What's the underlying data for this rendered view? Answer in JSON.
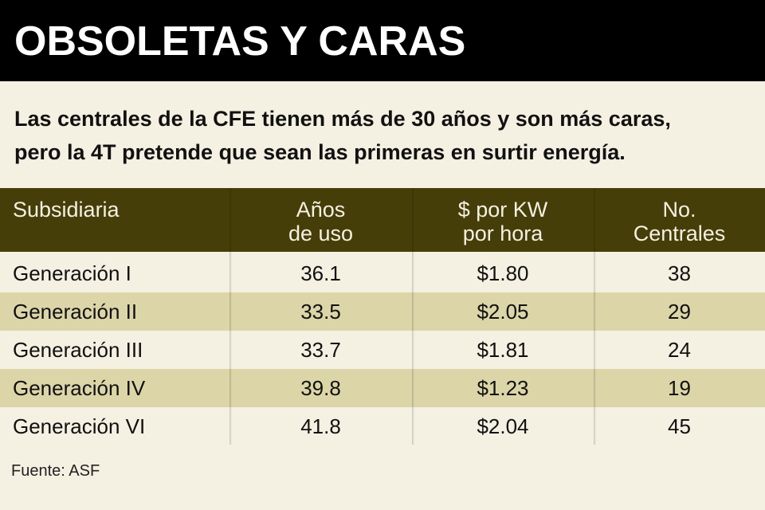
{
  "title": "OBSOLETAS Y CARAS",
  "subtitle": [
    "Las centrales de la CFE tienen más de 30 años y son más caras,",
    "pero la 4T pretende que sean las primeras en surtir energía."
  ],
  "colors": {
    "header_bg": "#463e08",
    "page_bg": "#f4f0e2",
    "alt_row": "#dcd5a8",
    "title_bg": "#000000"
  },
  "chart_data": {
    "type": "table",
    "columns": [
      [
        "Subsidiaria"
      ],
      [
        "Años",
        "de uso"
      ],
      [
        "$ por KW",
        "por hora"
      ],
      [
        "No.",
        "Centrales"
      ]
    ],
    "rows": [
      [
        "Generación I",
        "36.1",
        "$1.80",
        "38"
      ],
      [
        "Generación II",
        "33.5",
        "$2.05",
        "29"
      ],
      [
        "Generación III",
        "33.7",
        "$1.81",
        "24"
      ],
      [
        "Generación IV",
        "39.8",
        "$1.23",
        "19"
      ],
      [
        "Generación VI",
        "41.8",
        "$2.04",
        "45"
      ]
    ]
  },
  "source": "Fuente: ASF"
}
